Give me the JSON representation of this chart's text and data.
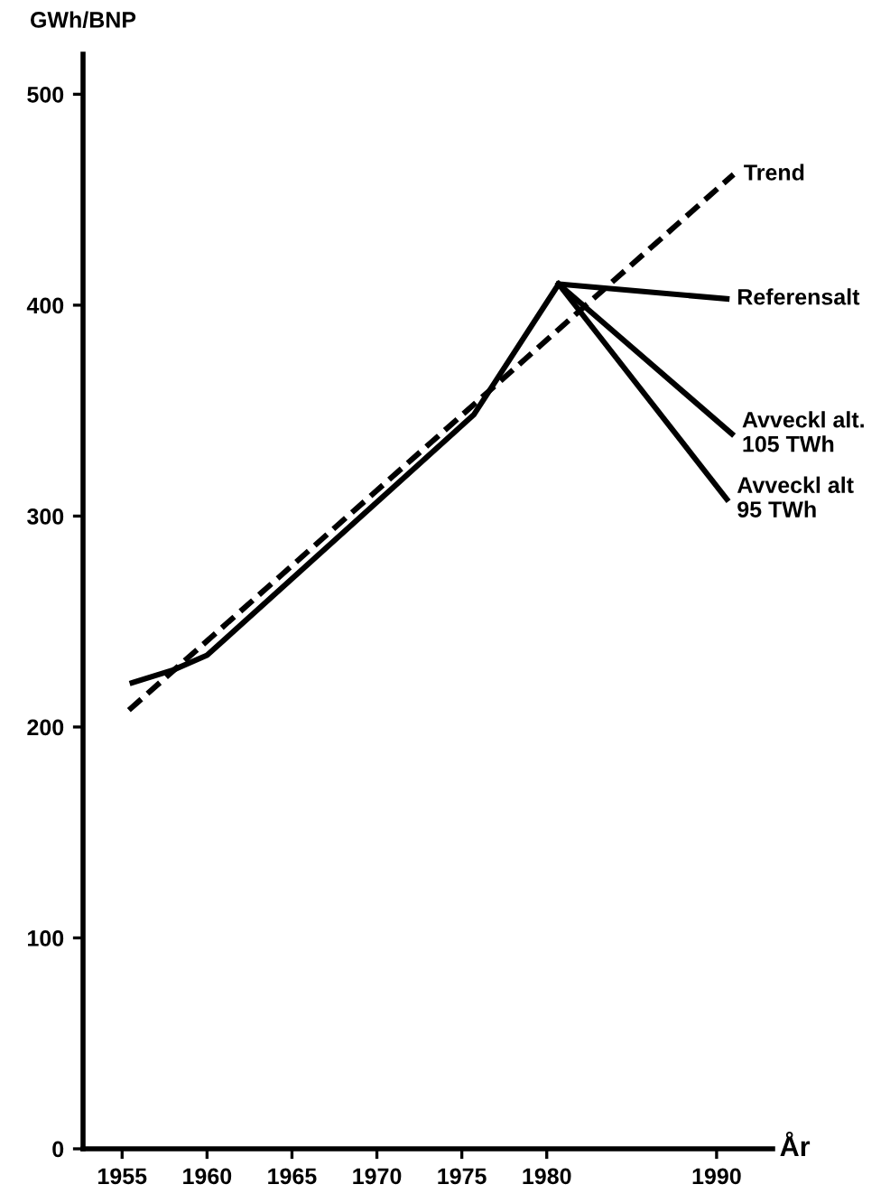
{
  "chart_data": {
    "type": "line",
    "xlabel": "År",
    "ylabel": "GWh/BNP",
    "xlim": [
      1952.7,
      1993.3
    ],
    "ylim": [
      0,
      519
    ],
    "xticks": [
      1955,
      1960,
      1965,
      1970,
      1975,
      1980,
      1990
    ],
    "yticks": [
      0,
      100,
      200,
      300,
      400,
      500
    ],
    "grid": false,
    "legend": false,
    "marker": "none",
    "series": [
      {
        "color": "#000000",
        "line_style": "solid",
        "x": [
          1955.6,
          1958,
          1960,
          1975.7,
          1980.7
        ],
        "values": [
          221,
          227,
          234,
          348,
          410
        ]
      },
      {
        "name": "Trend",
        "color": "#000000",
        "line_style": "dashed",
        "x": [
          1955.4,
          1991
        ],
        "values": [
          208,
          462
        ]
      },
      {
        "name": "Referensalt",
        "color": "#000000",
        "line_style": "solid",
        "x": [
          1980.7,
          1990.6
        ],
        "values": [
          410,
          403
        ]
      },
      {
        "name": "Avveckl alt.\n105 TWh",
        "color": "#000000",
        "line_style": "solid",
        "x": [
          1980.7,
          1990.9
        ],
        "values": [
          410,
          339
        ]
      },
      {
        "name": "Avveckl alt\n95 TWh",
        "color": "#000000",
        "line_style": "solid",
        "x": [
          1980.7,
          1990.6
        ],
        "values": [
          410,
          308
        ]
      }
    ]
  }
}
